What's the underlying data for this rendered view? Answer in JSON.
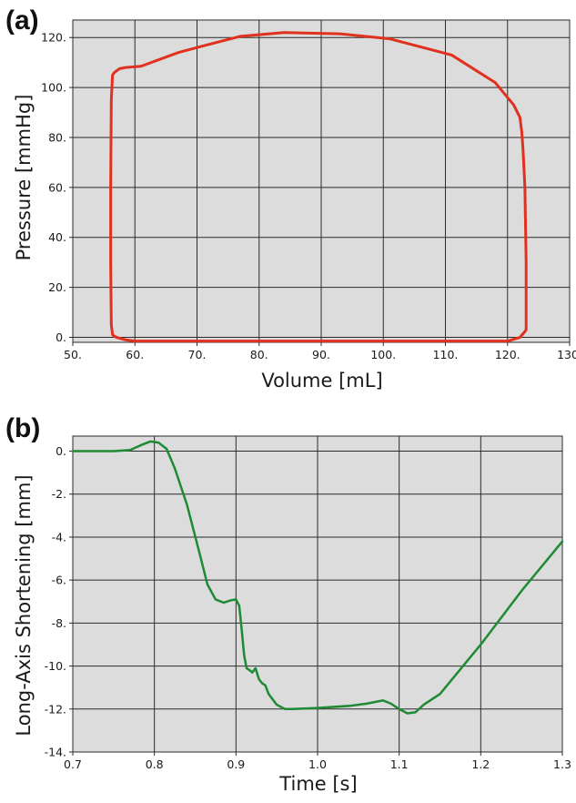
{
  "panels": {
    "a": {
      "label": "(a)"
    },
    "b": {
      "label": "(b)"
    }
  },
  "chart_data": [
    {
      "id": "a",
      "type": "line",
      "xlabel": "Volume [mL]",
      "ylabel": "Pressure [mmHg]",
      "xlim": [
        50,
        130
      ],
      "ylim": [
        -2,
        127
      ],
      "xticks": [
        50,
        60,
        70,
        80,
        90,
        100,
        110,
        120,
        130
      ],
      "xtick_labels": [
        "50.",
        "60.",
        "70.",
        "80.",
        "90.",
        "100.",
        "110.",
        "120.",
        "130."
      ],
      "yticks": [
        0,
        20,
        40,
        60,
        80,
        100,
        120
      ],
      "ytick_labels": [
        "0.",
        "20.",
        "40.",
        "60.",
        "80.",
        "100.",
        "120."
      ],
      "grid": true,
      "line_color": "#e0301e",
      "series": [
        {
          "x": [
            60,
            70,
            80,
            89,
            96,
            105,
            115,
            120,
            122,
            122.7,
            123,
            123,
            122.8,
            122.5,
            122.3,
            122,
            121,
            118,
            111,
            101,
            93,
            84,
            77,
            70,
            67,
            61,
            58.5,
            57.5,
            56.7,
            56.4,
            56.2,
            56.1,
            56.1,
            56.2,
            56.4,
            57,
            58.5,
            60
          ],
          "y": [
            -1.5,
            -1.5,
            -1.5,
            -1.5,
            -1.5,
            -1.5,
            -1.5,
            -1.5,
            0,
            2,
            3,
            30,
            60,
            75,
            82,
            88,
            93,
            102,
            113,
            119.5,
            121.5,
            122,
            120.5,
            116,
            114,
            108.5,
            108,
            107.5,
            106,
            105,
            95,
            60,
            30,
            5,
            1,
            0,
            -1,
            -1.5
          ]
        }
      ]
    },
    {
      "id": "b",
      "type": "line",
      "xlabel": "Time [s]",
      "ylabel": "Long-Axis Shortening [mm]",
      "xlim": [
        0.7,
        1.3
      ],
      "ylim": [
        -14,
        0.7
      ],
      "xticks": [
        0.7,
        0.8,
        0.9,
        1.0,
        1.1,
        1.2,
        1.3
      ],
      "xtick_labels": [
        "0.7",
        "0.8",
        "0.9",
        "1.0",
        "1.1",
        "1.2",
        "1.3"
      ],
      "yticks": [
        0,
        -2,
        -4,
        -6,
        -8,
        -10,
        -12,
        -14
      ],
      "ytick_labels": [
        "0.",
        "-2.",
        "-4.",
        "-6.",
        "-8.",
        "-10.",
        "-12.",
        "-14."
      ],
      "grid": true,
      "line_color": "#1f8a34",
      "series": [
        {
          "x": [
            0.7,
            0.75,
            0.77,
            0.785,
            0.795,
            0.805,
            0.815,
            0.825,
            0.84,
            0.855,
            0.865,
            0.875,
            0.885,
            0.893,
            0.9,
            0.904,
            0.907,
            0.91,
            0.913,
            0.917,
            0.92,
            0.924,
            0.928,
            0.932,
            0.936,
            0.94,
            0.95,
            0.96,
            0.97,
            1.0,
            1.04,
            1.06,
            1.08,
            1.09,
            1.1,
            1.105,
            1.11,
            1.12,
            1.13,
            1.15,
            1.2,
            1.25,
            1.3
          ],
          "y": [
            0,
            0,
            0.05,
            0.3,
            0.45,
            0.4,
            0.1,
            -0.8,
            -2.5,
            -4.7,
            -6.2,
            -6.9,
            -7.05,
            -6.95,
            -6.9,
            -7.2,
            -8.3,
            -9.5,
            -10.1,
            -10.2,
            -10.3,
            -10.1,
            -10.6,
            -10.8,
            -10.9,
            -11.3,
            -11.8,
            -12.0,
            -12.0,
            -11.95,
            -11.85,
            -11.75,
            -11.6,
            -11.75,
            -12.0,
            -12.1,
            -12.2,
            -12.15,
            -11.8,
            -11.3,
            -9.0,
            -6.5,
            -4.2
          ]
        }
      ]
    }
  ]
}
